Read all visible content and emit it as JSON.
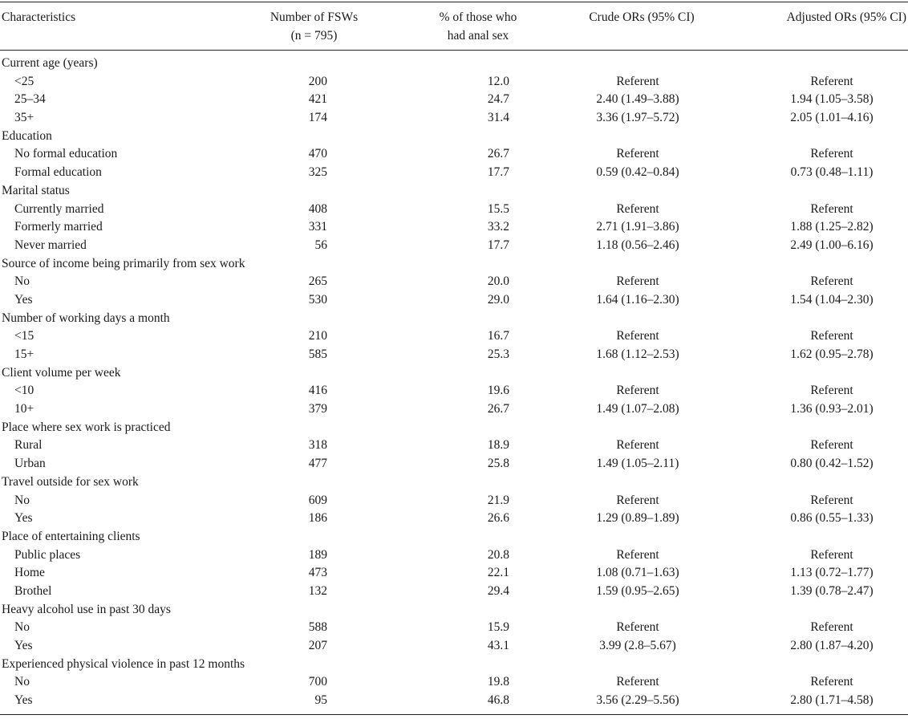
{
  "header": {
    "characteristics": "Characteristics",
    "number_line1": "Number of FSWs",
    "number_line2": "(n = 795)",
    "pct_line1": "% of those who",
    "pct_line2": "had anal sex",
    "crude": "Crude ORs (95% CI)",
    "adjusted": "Adjusted ORs (95% CI)"
  },
  "rows": [
    {
      "label": "Current age (years)",
      "type": "group",
      "n": "",
      "pct": "",
      "crude": "",
      "adj": ""
    },
    {
      "label": "<25",
      "type": "sub",
      "n": "200",
      "pct": "12.0",
      "crude": "Referent",
      "adj": "Referent"
    },
    {
      "label": "25–34",
      "type": "sub",
      "n": "421",
      "pct": "24.7",
      "crude": "2.40 (1.49–3.88)",
      "adj": "1.94 (1.05–3.58)"
    },
    {
      "label": "35+",
      "type": "sub",
      "n": "174",
      "pct": "31.4",
      "crude": "3.36 (1.97–5.72)",
      "adj": "2.05 (1.01–4.16)"
    },
    {
      "label": "Education",
      "type": "group",
      "n": "",
      "pct": "",
      "crude": "",
      "adj": ""
    },
    {
      "label": "No formal education",
      "type": "sub",
      "n": "470",
      "pct": "26.7",
      "crude": "Referent",
      "adj": "Referent"
    },
    {
      "label": "Formal education",
      "type": "sub",
      "n": "325",
      "pct": "17.7",
      "crude": "0.59 (0.42–0.84)",
      "adj": "0.73 (0.48–1.11)"
    },
    {
      "label": "Marital status",
      "type": "group",
      "n": "",
      "pct": "",
      "crude": "",
      "adj": ""
    },
    {
      "label": "Currently married",
      "type": "sub",
      "n": "408",
      "pct": "15.5",
      "crude": "Referent",
      "adj": "Referent"
    },
    {
      "label": "Formerly married",
      "type": "sub",
      "n": "331",
      "pct": "33.2",
      "crude": "2.71 (1.91–3.86)",
      "adj": "1.88 (1.25–2.82)"
    },
    {
      "label": "Never married",
      "type": "sub",
      "n": "56",
      "pct": "17.7",
      "crude": "1.18 (0.56–2.46)",
      "adj": "2.49 (1.00–6.16)"
    },
    {
      "label": "Source of income being primarily from sex work",
      "type": "group",
      "n": "",
      "pct": "",
      "crude": "",
      "adj": ""
    },
    {
      "label": "No",
      "type": "sub",
      "n": "265",
      "pct": "20.0",
      "crude": "Referent",
      "adj": "Referent"
    },
    {
      "label": "Yes",
      "type": "sub",
      "n": "530",
      "pct": "29.0",
      "crude": "1.64 (1.16–2.30)",
      "adj": "1.54 (1.04–2.30)"
    },
    {
      "label": "Number of working days a month",
      "type": "group",
      "n": "",
      "pct": "",
      "crude": "",
      "adj": ""
    },
    {
      "label": "<15",
      "type": "sub",
      "n": "210",
      "pct": "16.7",
      "crude": "Referent",
      "adj": "Referent"
    },
    {
      "label": "15+",
      "type": "sub",
      "n": "585",
      "pct": "25.3",
      "crude": "1.68 (1.12–2.53)",
      "adj": "1.62 (0.95–2.78)"
    },
    {
      "label": "Client volume per week",
      "type": "group",
      "n": "",
      "pct": "",
      "crude": "",
      "adj": ""
    },
    {
      "label": "<10",
      "type": "sub",
      "n": "416",
      "pct": "19.6",
      "crude": "Referent",
      "adj": "Referent"
    },
    {
      "label": "10+",
      "type": "sub",
      "n": "379",
      "pct": "26.7",
      "crude": "1.49 (1.07–2.08)",
      "adj": "1.36 (0.93–2.01)"
    },
    {
      "label": "Place where sex work is practiced",
      "type": "group",
      "n": "",
      "pct": "",
      "crude": "",
      "adj": ""
    },
    {
      "label": "Rural",
      "type": "sub",
      "n": "318",
      "pct": "18.9",
      "crude": "Referent",
      "adj": "Referent"
    },
    {
      "label": "Urban",
      "type": "sub",
      "n": "477",
      "pct": "25.8",
      "crude": "1.49 (1.05–2.11)",
      "adj": "0.80 (0.42–1.52)"
    },
    {
      "label": "Travel outside for sex work",
      "type": "group",
      "n": "",
      "pct": "",
      "crude": "",
      "adj": ""
    },
    {
      "label": "No",
      "type": "sub",
      "n": "609",
      "pct": "21.9",
      "crude": "Referent",
      "adj": "Referent"
    },
    {
      "label": "Yes",
      "type": "sub",
      "n": "186",
      "pct": "26.6",
      "crude": "1.29 (0.89–1.89)",
      "adj": "0.86 (0.55–1.33)"
    },
    {
      "label": "Place of entertaining clients",
      "type": "group",
      "n": "",
      "pct": "",
      "crude": "",
      "adj": ""
    },
    {
      "label": "Public places",
      "type": "sub",
      "n": "189",
      "pct": "20.8",
      "crude": "Referent",
      "adj": "Referent"
    },
    {
      "label": "Home",
      "type": "sub",
      "n": "473",
      "pct": "22.1",
      "crude": "1.08 (0.71–1.63)",
      "adj": "1.13 (0.72–1.77)"
    },
    {
      "label": "Brothel",
      "type": "sub",
      "n": "132",
      "pct": "29.4",
      "crude": "1.59 (0.95–2.65)",
      "adj": "1.39 (0.78–2.47)"
    },
    {
      "label": "Heavy alcohol use in past 30 days",
      "type": "group",
      "n": "",
      "pct": "",
      "crude": "",
      "adj": ""
    },
    {
      "label": "No",
      "type": "sub",
      "n": "588",
      "pct": "15.9",
      "crude": "Referent",
      "adj": "Referent"
    },
    {
      "label": "Yes",
      "type": "sub",
      "n": "207",
      "pct": "43.1",
      "crude": "3.99 (2.8–5.67)",
      "adj": "2.80 (1.87–4.20)"
    },
    {
      "label": "Experienced physical violence in past 12 months",
      "type": "group",
      "n": "",
      "pct": "",
      "crude": "",
      "adj": ""
    },
    {
      "label": "No",
      "type": "sub",
      "n": "700",
      "pct": "19.8",
      "crude": "Referent",
      "adj": "Referent"
    },
    {
      "label": "Yes",
      "type": "sub",
      "n": "95",
      "pct": "46.8",
      "crude": "3.56 (2.29–5.56)",
      "adj": "2.80 (1.71–4.58)"
    }
  ]
}
